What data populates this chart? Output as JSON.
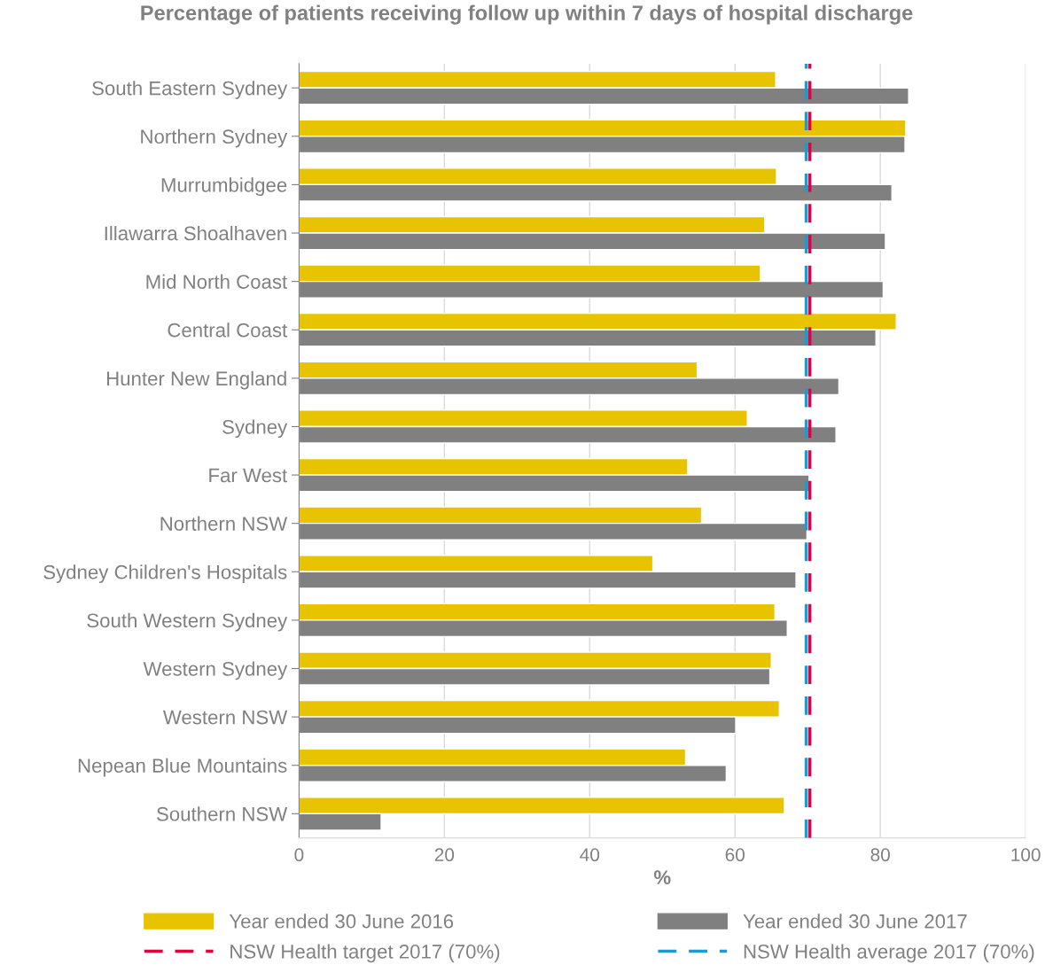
{
  "chart_data": {
    "type": "bar",
    "orientation": "horizontal",
    "title": "Percentage of patients receiving follow up within 7 days of hospital discharge",
    "xlabel": "%",
    "categories": [
      "South Eastern Sydney",
      "Northern Sydney",
      "Murrumbidgee",
      "Illawarra Shoalhaven",
      "Mid North Coast",
      "Central Coast",
      "Hunter New England",
      "Sydney",
      "Far West",
      "Northern NSW",
      "Sydney Children's Hospitals",
      "South Western Sydney",
      "Western Sydney",
      "Western NSW",
      "Nepean Blue Mountains",
      "Southern NSW"
    ],
    "series": [
      {
        "name": "Year ended 30 June 2016",
        "color": "#e8c300",
        "values": [
          65.6,
          83.5,
          65.7,
          64.1,
          63.5,
          82.2,
          54.8,
          61.7,
          53.5,
          55.4,
          48.7,
          65.5,
          65.0,
          66.1,
          53.2,
          66.8
        ]
      },
      {
        "name": "Year ended 30 June 2017",
        "color": "#808080",
        "values": [
          83.9,
          83.4,
          81.6,
          80.7,
          80.4,
          79.4,
          74.3,
          73.9,
          70.2,
          69.9,
          68.4,
          67.2,
          64.8,
          60.1,
          58.8,
          11.3
        ]
      }
    ],
    "ref_lines": [
      {
        "axis": "x",
        "value": 70.3,
        "label": "NSW Health target 2017 (70%)",
        "color": "#e4003b",
        "line_style": "dashed"
      },
      {
        "axis": "x",
        "value": 69.8,
        "label": "NSW Health average 2017 (70%)",
        "color": "#1a9ad6",
        "line_style": "dashed"
      }
    ],
    "xlim": [
      0,
      100
    ],
    "xticks": [
      0,
      20,
      40,
      60,
      80,
      100
    ],
    "grid": "x",
    "legend": "bottom"
  }
}
